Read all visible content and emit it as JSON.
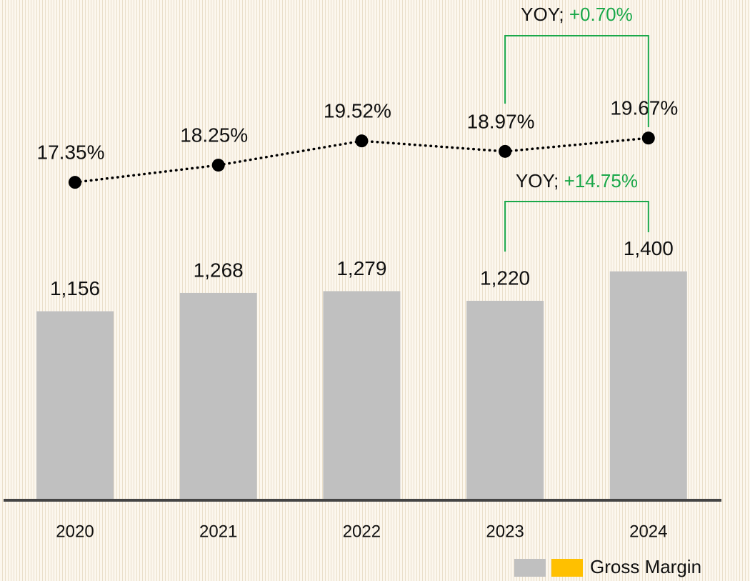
{
  "chart_data": {
    "type": "bar+line",
    "categories": [
      "2020",
      "2021",
      "2022",
      "2023",
      "2024"
    ],
    "series": [
      {
        "type": "bar",
        "color": "#c0c0c0",
        "values": [
          1156,
          1268,
          1279,
          1220,
          1400
        ],
        "value_labels": [
          "1,156",
          "1,268",
          "1,279",
          "1,220",
          "1,400"
        ]
      },
      {
        "type": "line",
        "axis": "y2",
        "color": "#000000",
        "values": [
          17.35,
          18.25,
          19.52,
          18.97,
          19.67
        ],
        "value_labels": [
          "17.35%",
          "18.25%",
          "19.52%",
          "18.97%",
          "19.67%"
        ]
      }
    ],
    "ylim": [
      0,
      3060
    ],
    "y2lim": [
      0.7,
      26.9
    ],
    "annotations": [
      {
        "prefix": "YOY; ",
        "change": "+0.70%",
        "color": "#1aa84a"
      },
      {
        "prefix": "YOY; ",
        "change": "+14.75%",
        "color": "#1aa84a"
      }
    ],
    "legend": [
      {
        "color": "#c0c0c0"
      },
      {
        "color": "#ffc000",
        "label": "Gross Margin"
      }
    ]
  }
}
